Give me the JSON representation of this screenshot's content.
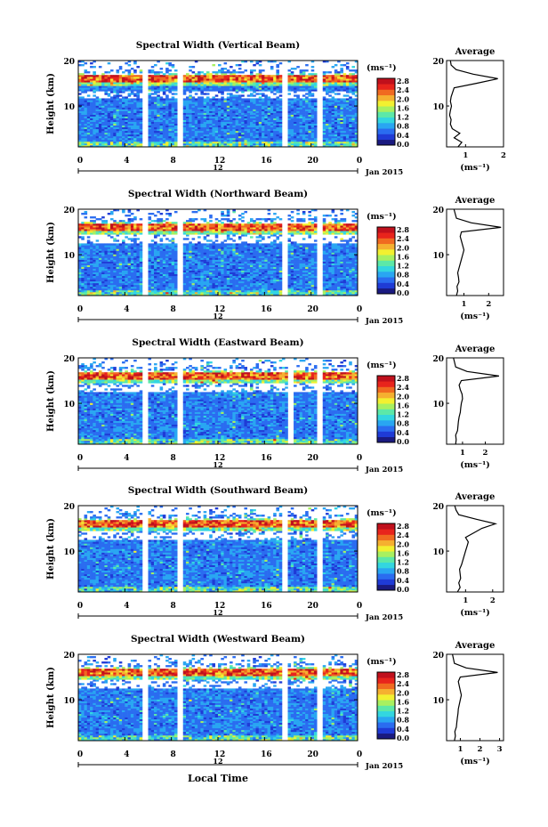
{
  "colorbar": {
    "unit": "(ms⁻¹)",
    "ticks": [
      "2.8",
      "2.4",
      "2.0",
      "1.6",
      "1.2",
      "0.8",
      "0.4",
      "0.0"
    ],
    "colors": [
      "#1a1a80",
      "#1f3bd6",
      "#2a6cf0",
      "#29a6f2",
      "#33d6e0",
      "#5ce8a8",
      "#a8f060",
      "#f2f030",
      "#f5b030",
      "#f06a20",
      "#e8241c",
      "#c0101c"
    ]
  },
  "date_label": "Jan 2015",
  "xlabel": "Local Time",
  "average_ylabel": "(ms⁻¹)",
  "chart_data": [
    {
      "type": "heatmap",
      "title": "Spectral Width (Vertical Beam)",
      "ylabel": "Height (km)",
      "x_ticks": [
        "0",
        "4",
        "8",
        "12",
        "16",
        "20",
        "0"
      ],
      "day_label": "12",
      "y_ticks": [
        "20",
        "10"
      ],
      "xlim": [
        0,
        24
      ],
      "ylim": [
        1,
        20
      ],
      "gaps": [
        [
          5.5,
          6.0
        ],
        [
          8.5,
          9.0
        ],
        [
          17.5,
          18.0
        ],
        [
          20.5,
          21.0
        ]
      ],
      "tropopause_km": 16,
      "average": {
        "title": "Average",
        "x_ticks": [
          "1",
          "2"
        ],
        "xlim": [
          0.5,
          2.0
        ],
        "heights": [
          1,
          2,
          3,
          4,
          5,
          6,
          7,
          8,
          9,
          10,
          11,
          12,
          13,
          14,
          15,
          16,
          17,
          18,
          19,
          20
        ],
        "values": [
          0.8,
          0.9,
          0.7,
          0.85,
          0.65,
          0.6,
          0.62,
          0.58,
          0.6,
          0.63,
          0.6,
          0.62,
          0.66,
          0.7,
          1.3,
          1.85,
          1.2,
          0.75,
          0.62,
          0.6
        ]
      }
    },
    {
      "type": "heatmap",
      "title": "Spectral Width (Northward Beam)",
      "ylabel": "Height (km)",
      "x_ticks": [
        "0",
        "4",
        "8",
        "12",
        "16",
        "20",
        "0"
      ],
      "day_label": "12",
      "y_ticks": [
        "20",
        "10"
      ],
      "xlim": [
        0,
        24
      ],
      "ylim": [
        1,
        20
      ],
      "gaps": [
        [
          5.5,
          6.0
        ],
        [
          8.5,
          9.0
        ],
        [
          17.5,
          18.0
        ],
        [
          20.5,
          21.0
        ]
      ],
      "tropopause_km": 16,
      "average": {
        "title": "Average",
        "x_ticks": [
          "1",
          "2"
        ],
        "xlim": [
          0.3,
          2.6
        ],
        "heights": [
          1,
          2,
          3,
          4,
          5,
          6,
          7,
          8,
          9,
          10,
          11,
          12,
          13,
          14,
          15,
          16,
          17,
          18,
          19,
          20
        ],
        "values": [
          0.7,
          0.75,
          0.72,
          0.8,
          0.78,
          0.75,
          0.8,
          0.85,
          0.9,
          0.95,
          1.0,
          0.95,
          0.9,
          0.85,
          0.9,
          2.5,
          1.3,
          0.7,
          0.65,
          0.6
        ]
      }
    },
    {
      "type": "heatmap",
      "title": "Spectral Width (Eastward Beam)",
      "ylabel": "Height (km)",
      "x_ticks": [
        "0",
        "4",
        "8",
        "12",
        "16",
        "20",
        "0"
      ],
      "day_label": "12",
      "y_ticks": [
        "20",
        "10"
      ],
      "xlim": [
        0,
        24
      ],
      "ylim": [
        1,
        20
      ],
      "gaps": [
        [
          5.5,
          6.0
        ],
        [
          8.5,
          9.0
        ],
        [
          18.0,
          18.5
        ],
        [
          20.5,
          21.0
        ]
      ],
      "tropopause_km": 16,
      "average": {
        "title": "Average",
        "x_ticks": [
          "1",
          "2"
        ],
        "xlim": [
          0.3,
          2.8
        ],
        "heights": [
          1,
          2,
          3,
          4,
          5,
          6,
          7,
          8,
          9,
          10,
          11,
          12,
          13,
          14,
          15,
          16,
          17,
          18,
          19,
          20
        ],
        "values": [
          0.7,
          0.72,
          0.7,
          0.78,
          0.8,
          0.82,
          0.85,
          0.9,
          0.92,
          0.95,
          1.0,
          0.98,
          0.9,
          0.85,
          0.95,
          2.6,
          1.2,
          0.7,
          0.65,
          0.6
        ]
      }
    },
    {
      "type": "heatmap",
      "title": "Spectral Width (Southward Beam)",
      "ylabel": "Height (km)",
      "x_ticks": [
        "0",
        "4",
        "8",
        "12",
        "16",
        "20",
        "0"
      ],
      "day_label": "12",
      "y_ticks": [
        "20",
        "10"
      ],
      "xlim": [
        0,
        24
      ],
      "ylim": [
        1,
        20
      ],
      "gaps": [
        [
          5.5,
          6.0
        ],
        [
          8.5,
          9.0
        ],
        [
          17.5,
          18.0
        ],
        [
          20.5,
          21.0
        ]
      ],
      "tropopause_km": 16,
      "average": {
        "title": "Average",
        "x_ticks": [
          "1",
          "2"
        ],
        "xlim": [
          0.3,
          2.4
        ],
        "heights": [
          1,
          2,
          3,
          4,
          5,
          6,
          7,
          8,
          9,
          10,
          11,
          12,
          13,
          14,
          15,
          16,
          17,
          18,
          19,
          20
        ],
        "values": [
          0.7,
          0.8,
          0.75,
          0.82,
          0.8,
          0.78,
          0.85,
          0.9,
          0.95,
          1.0,
          1.05,
          1.1,
          1.0,
          1.3,
          1.6,
          2.1,
          1.4,
          0.75,
          0.65,
          0.6
        ]
      }
    },
    {
      "type": "heatmap",
      "title": "Spectral Width (Westward Beam)",
      "ylabel": "Height (km)",
      "x_ticks": [
        "0",
        "4",
        "8",
        "12",
        "16",
        "20",
        "0"
      ],
      "day_label": "12",
      "y_ticks": [
        "20",
        "10"
      ],
      "xlim": [
        0,
        24
      ],
      "ylim": [
        1,
        20
      ],
      "gaps": [
        [
          5.5,
          6.0
        ],
        [
          8.5,
          9.0
        ],
        [
          17.5,
          18.0
        ],
        [
          20.5,
          21.0
        ]
      ],
      "tropopause_km": 16,
      "average": {
        "title": "Average",
        "x_ticks": [
          "1",
          "2",
          "3"
        ],
        "xlim": [
          0.3,
          3.2
        ],
        "heights": [
          1,
          2,
          3,
          4,
          5,
          6,
          7,
          8,
          9,
          10,
          11,
          12,
          13,
          14,
          15,
          16,
          17,
          18,
          19,
          20
        ],
        "values": [
          0.7,
          0.75,
          0.72,
          0.8,
          0.82,
          0.85,
          0.88,
          0.9,
          0.95,
          1.0,
          1.05,
          1.0,
          0.95,
          0.9,
          1.0,
          2.9,
          1.3,
          0.7,
          0.65,
          0.6
        ]
      }
    }
  ]
}
